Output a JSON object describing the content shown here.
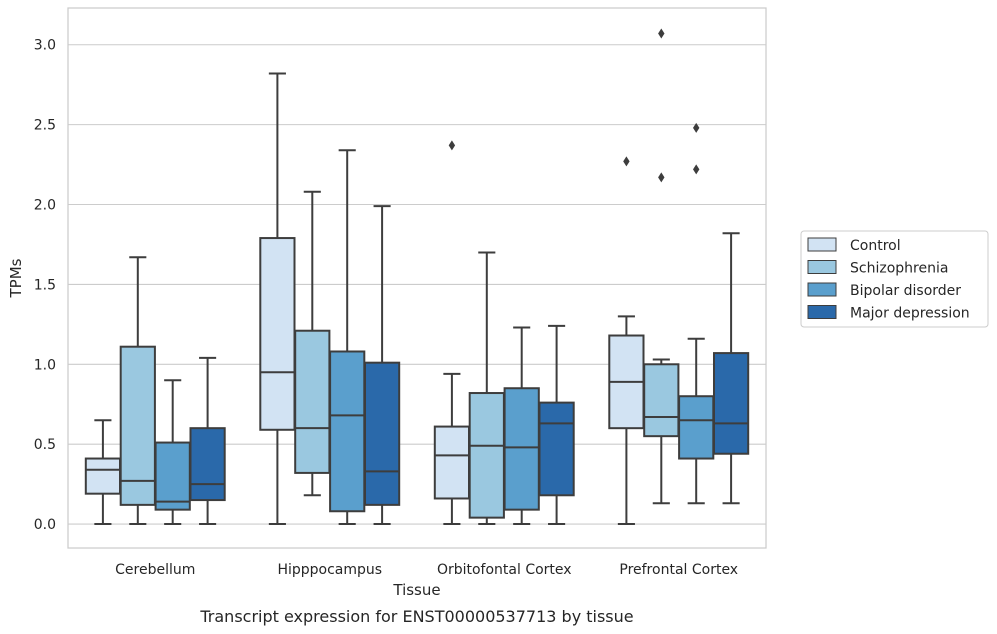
{
  "chart_data": {
    "type": "box",
    "title": "",
    "caption": "Transcript expression for ENST00000537713 by tissue",
    "xlabel": "Tissue",
    "ylabel": "TPMs",
    "ylim": [
      -0.15,
      3.23
    ],
    "yticks": [
      "0.0",
      "0.5",
      "1.0",
      "1.5",
      "2.0",
      "2.5",
      "3.0"
    ],
    "grid": "horizontal",
    "legend_position": "right",
    "categories": [
      "Cerebellum",
      "Hipppocampus",
      "Orbitofontal Cortex",
      "Prefrontal Cortex"
    ],
    "series": [
      {
        "name": "Control",
        "color": "#d2e3f3",
        "boxes": [
          {
            "whislo": 0.0,
            "q1": 0.19,
            "med": 0.34,
            "q3": 0.41,
            "whishi": 0.65,
            "fliers": []
          },
          {
            "whislo": 0.0,
            "q1": 0.59,
            "med": 0.95,
            "q3": 1.79,
            "whishi": 2.82,
            "fliers": []
          },
          {
            "whislo": 0.0,
            "q1": 0.16,
            "med": 0.43,
            "q3": 0.61,
            "whishi": 0.94,
            "fliers": [
              2.37
            ]
          },
          {
            "whislo": 0.0,
            "q1": 0.6,
            "med": 0.89,
            "q3": 1.18,
            "whishi": 1.3,
            "fliers": [
              2.27
            ]
          }
        ]
      },
      {
        "name": "Schizophrenia",
        "color": "#9ac8e0",
        "boxes": [
          {
            "whislo": 0.0,
            "q1": 0.12,
            "med": 0.27,
            "q3": 1.11,
            "whishi": 1.67,
            "fliers": []
          },
          {
            "whislo": 0.18,
            "q1": 0.32,
            "med": 0.6,
            "q3": 1.21,
            "whishi": 2.08,
            "fliers": []
          },
          {
            "whislo": 0.0,
            "q1": 0.04,
            "med": 0.49,
            "q3": 0.82,
            "whishi": 1.7,
            "fliers": []
          },
          {
            "whislo": 0.13,
            "q1": 0.55,
            "med": 0.67,
            "q3": 1.0,
            "whishi": 1.03,
            "fliers": [
              3.07,
              2.17
            ]
          }
        ]
      },
      {
        "name": "Bipolar disorder",
        "color": "#5a9fcd",
        "boxes": [
          {
            "whislo": 0.0,
            "q1": 0.09,
            "med": 0.14,
            "q3": 0.51,
            "whishi": 0.9,
            "fliers": []
          },
          {
            "whislo": 0.0,
            "q1": 0.08,
            "med": 0.68,
            "q3": 1.08,
            "whishi": 2.34,
            "fliers": []
          },
          {
            "whislo": 0.0,
            "q1": 0.09,
            "med": 0.48,
            "q3": 0.85,
            "whishi": 1.23,
            "fliers": []
          },
          {
            "whislo": 0.13,
            "q1": 0.41,
            "med": 0.65,
            "q3": 0.8,
            "whishi": 1.16,
            "fliers": [
              2.48,
              2.22
            ]
          }
        ]
      },
      {
        "name": "Major depression",
        "color": "#2a69aa",
        "boxes": [
          {
            "whislo": 0.0,
            "q1": 0.15,
            "med": 0.25,
            "q3": 0.6,
            "whishi": 1.04,
            "fliers": []
          },
          {
            "whislo": 0.0,
            "q1": 0.12,
            "med": 0.33,
            "q3": 1.01,
            "whishi": 1.99,
            "fliers": []
          },
          {
            "whislo": 0.0,
            "q1": 0.18,
            "med": 0.63,
            "q3": 0.76,
            "whishi": 1.24,
            "fliers": []
          },
          {
            "whislo": 0.13,
            "q1": 0.44,
            "med": 0.63,
            "q3": 1.07,
            "whishi": 1.82,
            "fliers": []
          }
        ]
      }
    ]
  }
}
